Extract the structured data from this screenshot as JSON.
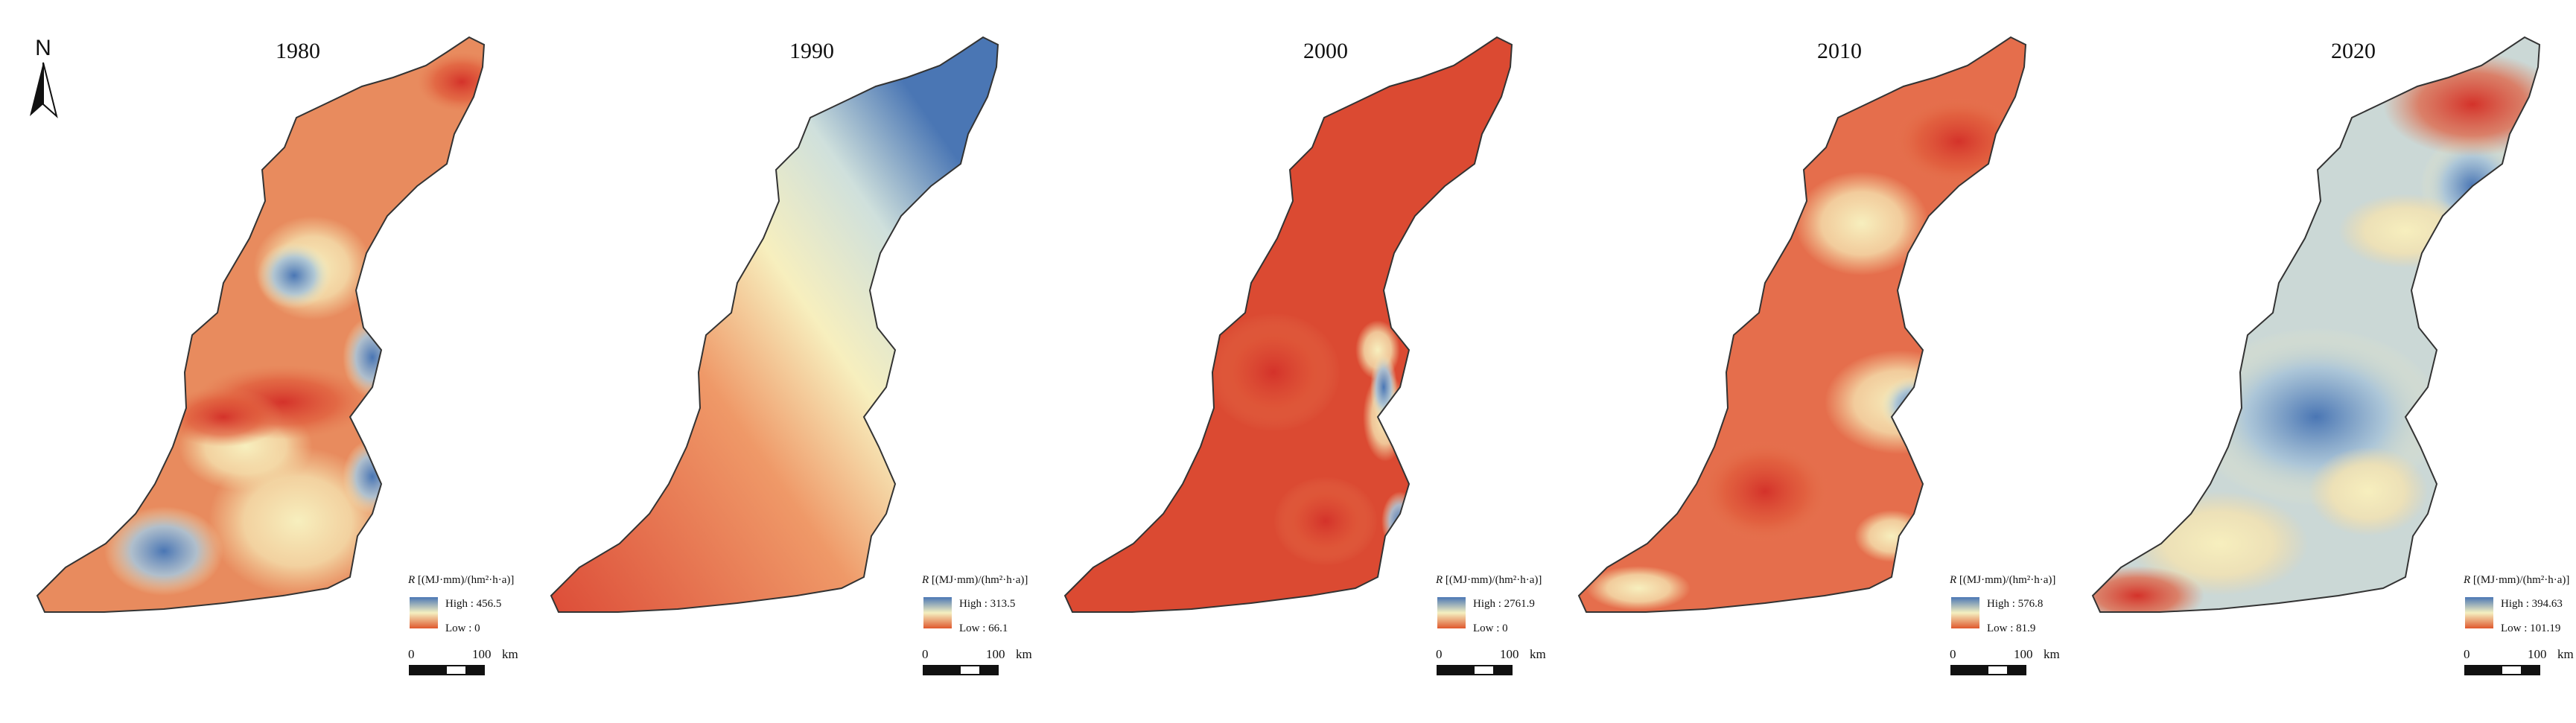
{
  "north_arrow": {
    "label": "N"
  },
  "legend_common": {
    "variable": "R",
    "unit": "[(MJ·mm)/(hm²·h·a)]",
    "high_prefix": "High :",
    "low_prefix": "Low :"
  },
  "scale_bar": {
    "zero": "0",
    "distance": "100",
    "unit": "km"
  },
  "maps": [
    {
      "year": "1980",
      "high": "456.5",
      "low": "0"
    },
    {
      "year": "1990",
      "high": "313.5",
      "low": "66.1"
    },
    {
      "year": "2000",
      "high": "2761.9",
      "low": "0"
    },
    {
      "year": "2010",
      "high": "576.8",
      "low": "81.9"
    },
    {
      "year": "2020",
      "high": "394.63",
      "low": "101.19"
    }
  ],
  "colors": {
    "high": "#4a76b4",
    "mid": "#f5f0c0",
    "low": "#d83a2c"
  }
}
